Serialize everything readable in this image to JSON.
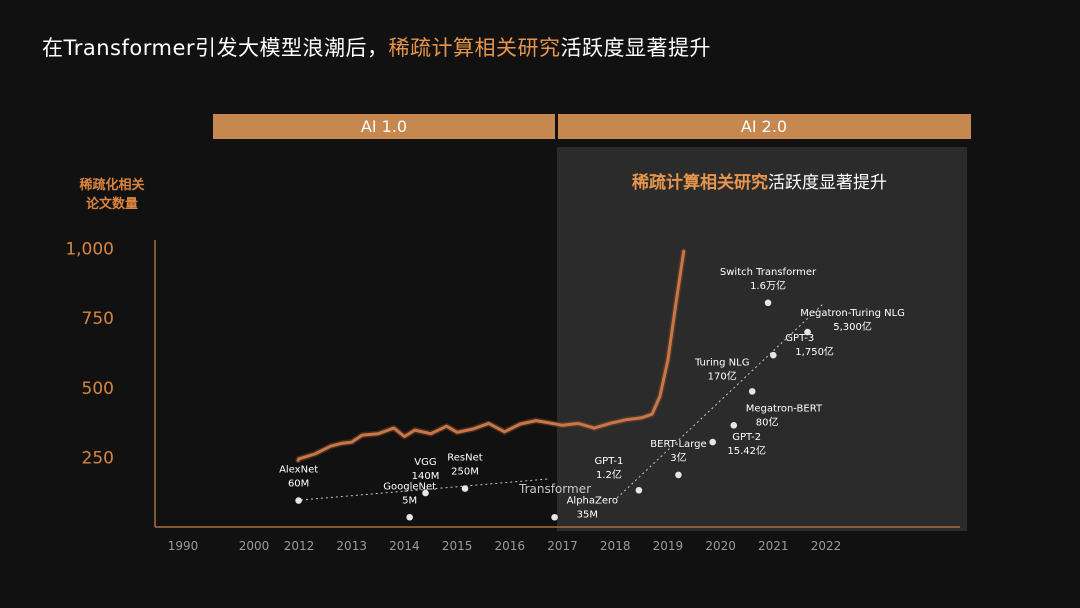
{
  "title": {
    "part1": "在Transformer引发大模型浪潮后，",
    "highlight": "稀疏计算相关研究",
    "part2": "活跃度显著提升"
  },
  "colors": {
    "accent": "#e8954c",
    "band": "#c7884f",
    "curve": "#c8774a",
    "panel": "#2b2b2b",
    "background": "#111111"
  },
  "chart_data": {
    "type": "line",
    "ylabel_lines": [
      "稀疏化相关",
      "论文数量"
    ],
    "yticks": [
      {
        "value": 250,
        "label": "250"
      },
      {
        "value": 500,
        "label": "500"
      },
      {
        "value": 750,
        "label": "750"
      },
      {
        "value": 1000,
        "label": "1,000"
      }
    ],
    "ylim": [
      0,
      1050
    ],
    "xticks": [
      "1990",
      "2000",
      "2012",
      "2013",
      "2014",
      "2015",
      "2016",
      "2017",
      "2018",
      "2019",
      "2020",
      "2021",
      "2022"
    ],
    "eras": [
      {
        "label": "AI 1.0"
      },
      {
        "label": "AI 2.0"
      }
    ],
    "panel_title": {
      "highlight": "稀疏计算相关研究",
      "rest": "活跃度显著提升"
    },
    "transformer_label": "Transformer",
    "series": [
      {
        "values": [
          {
            "x": 2011.8,
            "y": 240
          },
          {
            "x": 2012.0,
            "y": 245
          },
          {
            "x": 2012.3,
            "y": 262
          },
          {
            "x": 2012.6,
            "y": 290
          },
          {
            "x": 2012.8,
            "y": 300
          },
          {
            "x": 2013.0,
            "y": 305
          },
          {
            "x": 2013.2,
            "y": 330
          },
          {
            "x": 2013.5,
            "y": 335
          },
          {
            "x": 2013.8,
            "y": 355
          },
          {
            "x": 2014.0,
            "y": 325
          },
          {
            "x": 2014.2,
            "y": 348
          },
          {
            "x": 2014.5,
            "y": 335
          },
          {
            "x": 2014.8,
            "y": 362
          },
          {
            "x": 2015.0,
            "y": 340
          },
          {
            "x": 2015.3,
            "y": 352
          },
          {
            "x": 2015.6,
            "y": 372
          },
          {
            "x": 2015.9,
            "y": 342
          },
          {
            "x": 2016.2,
            "y": 370
          },
          {
            "x": 2016.5,
            "y": 382
          },
          {
            "x": 2016.8,
            "y": 372
          },
          {
            "x": 2017.0,
            "y": 365
          },
          {
            "x": 2017.3,
            "y": 372
          },
          {
            "x": 2017.6,
            "y": 355
          },
          {
            "x": 2017.9,
            "y": 372
          },
          {
            "x": 2018.2,
            "y": 385
          },
          {
            "x": 2018.5,
            "y": 392
          },
          {
            "x": 2018.7,
            "y": 405
          },
          {
            "x": 2018.85,
            "y": 470
          },
          {
            "x": 2019.0,
            "y": 600
          },
          {
            "x": 2019.15,
            "y": 800
          },
          {
            "x": 2019.3,
            "y": 990
          }
        ]
      }
    ],
    "models": [
      {
        "name": "AlexNet",
        "size": "60M",
        "x": 2011.9,
        "y": 95,
        "labelPos": "above"
      },
      {
        "name": "GoogleNet",
        "size": "5M",
        "x": 2014.1,
        "y": 35,
        "labelPos": "above"
      },
      {
        "name": "VGG",
        "size": "140M",
        "x": 2014.4,
        "y": 122,
        "labelPos": "above"
      },
      {
        "name": "ResNet",
        "size": "250M",
        "x": 2015.15,
        "y": 138,
        "labelPos": "above"
      },
      {
        "name": "AlphaZero",
        "size": "35M",
        "x": 2016.85,
        "y": 35,
        "labelPos": "right"
      },
      {
        "name": "GPT-1",
        "size": "1.2亿",
        "x": 2018.45,
        "y": 132,
        "labelPos": "left"
      },
      {
        "name": "BERT-Large",
        "size": "3亿",
        "x": 2019.2,
        "y": 187,
        "labelPos": "above"
      },
      {
        "name": "GPT-2",
        "size": "15.42亿",
        "x": 2019.85,
        "y": 305,
        "labelPos": "below-right"
      },
      {
        "name": "Megatron-BERT",
        "size": "80亿",
        "x": 2020.25,
        "y": 365,
        "labelPos": "right"
      },
      {
        "name": "Turing NLG",
        "size": "170亿",
        "x": 2020.6,
        "y": 487,
        "labelPos": "left"
      },
      {
        "name": "GPT-3",
        "size": "1,750亿",
        "x": 2021.0,
        "y": 617,
        "labelPos": "right"
      },
      {
        "name": "Megatron-Turing NLG",
        "size": "5,300亿",
        "x": 2021.65,
        "y": 700,
        "labelPos": "above-right"
      },
      {
        "name": "Switch Transformer",
        "size": "1.6万亿",
        "x": 2020.9,
        "y": 805,
        "labelPos": "above"
      }
    ]
  }
}
